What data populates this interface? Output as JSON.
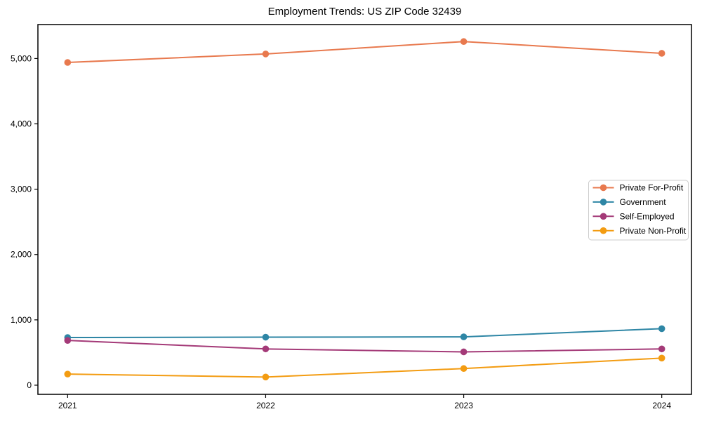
{
  "chart_data": {
    "type": "line",
    "title": "Employment Trends: US ZIP Code 32439",
    "x": [
      2021,
      2022,
      2023,
      2024
    ],
    "x_tick_labels": [
      "2021",
      "2022",
      "2023",
      "2024"
    ],
    "series": [
      {
        "name": "Private For-Profit",
        "color": "#e8794e",
        "values": [
          4940,
          5070,
          5260,
          5080
        ]
      },
      {
        "name": "Government",
        "color": "#2e86a5",
        "values": [
          730,
          735,
          740,
          865
        ]
      },
      {
        "name": "Self-Employed",
        "color": "#a43a78",
        "values": [
          685,
          555,
          510,
          555
        ]
      },
      {
        "name": "Private Non-Profit",
        "color": "#f39c12",
        "values": [
          170,
          125,
          255,
          415
        ]
      }
    ],
    "xlim": [
      2020.85,
      2024.15
    ],
    "ylim": [
      -140,
      5520
    ],
    "yticks": [
      0,
      1000,
      2000,
      3000,
      4000,
      5000
    ],
    "ytick_labels": [
      "0",
      "1,000",
      "2,000",
      "3,000",
      "4,000",
      "5,000"
    ],
    "legend": {
      "position": "center right",
      "border_color": "#cccccc",
      "background": "#ffffff"
    },
    "grid": false,
    "axis_color": "#000000",
    "marker": "circle"
  }
}
